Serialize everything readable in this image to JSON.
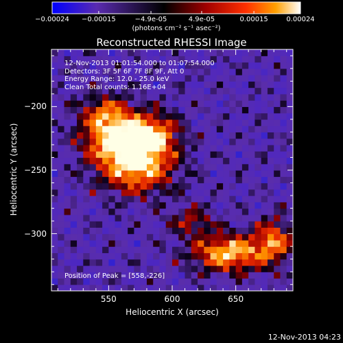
{
  "colorbar": {
    "tick_labels": [
      "-0.00024",
      "-0.00015",
      "-4.9e-05",
      "4.9e-05",
      "0.00015",
      "0.00024"
    ],
    "tick_values": [
      -0.00024,
      -0.00015,
      -4.9e-05,
      4.9e-05,
      0.00015,
      0.00024
    ],
    "range": [
      -0.00024,
      0.00024
    ],
    "units": "(photons cm⁻² s⁻¹ asec⁻²)",
    "colors": [
      "#0000ff",
      "#5a2bb0",
      "#000000",
      "#a00000",
      "#ff3000",
      "#ffa000",
      "#ffffff"
    ]
  },
  "chart_data": {
    "type": "heatmap",
    "title": "Reconstructed RHESSI Image",
    "xlabel": "Heliocentric X (arcsec)",
    "ylabel": "Heliocentric Y (arcsec)",
    "xlim": [
      505,
      695
    ],
    "ylim": [
      -345,
      -155
    ],
    "x_ticks": [
      550,
      600,
      650
    ],
    "y_ticks": [
      -200,
      -250,
      -300
    ],
    "grid": false,
    "annotations": [
      "12-Nov-2013 01:01:54.000 to 01:07:54.000",
      "Detectors: 3F 5F 6F 7F 8F 9F, Att 0",
      "Energy Range: 12.0 - 25.0 keV",
      "Clean     Total counts: 1.16E+04"
    ],
    "peak_label": "Position of Peak = [558,-226]",
    "peak": [
      558,
      -226
    ],
    "sources": [
      {
        "x": 558,
        "y": -226,
        "intensity": 1.0,
        "sx": 18,
        "sy": 12
      },
      {
        "x": 585,
        "y": -222,
        "intensity": 0.7,
        "sx": 14,
        "sy": 12
      },
      {
        "x": 572,
        "y": -248,
        "intensity": 0.85,
        "sx": 20,
        "sy": 14
      },
      {
        "x": 548,
        "y": -205,
        "intensity": 0.6,
        "sx": 14,
        "sy": 10
      },
      {
        "x": 645,
        "y": -315,
        "intensity": 0.9,
        "sx": 20,
        "sy": 10
      },
      {
        "x": 680,
        "y": -305,
        "intensity": 0.65,
        "sx": 10,
        "sy": 12
      },
      {
        "x": 615,
        "y": -290,
        "intensity": 0.4,
        "sx": 12,
        "sy": 8
      }
    ]
  },
  "footer": {
    "timestamp": "12-Nov-2013 04:23"
  }
}
